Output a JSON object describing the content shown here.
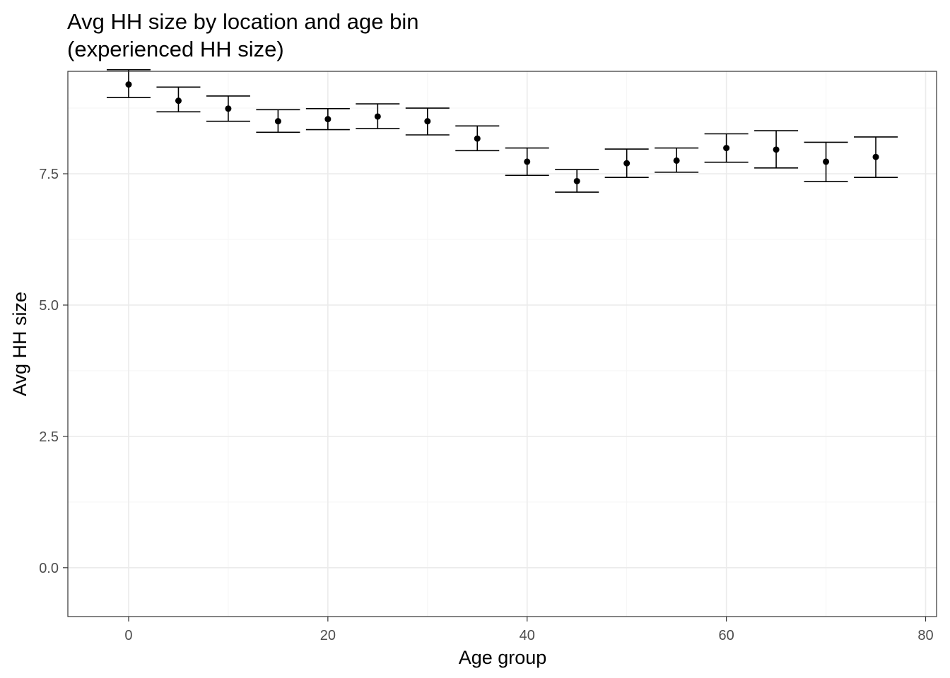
{
  "chart_data": {
    "type": "errorbar",
    "title_lines": [
      "Avg HH size by location and age bin",
      "(experienced HH size)"
    ],
    "xlabel": "Age group",
    "ylabel": "Avg HH size",
    "xlim": [
      -6.1,
      81.1
    ],
    "ylim": [
      -0.93,
      9.45
    ],
    "x_ticks": [
      0,
      20,
      40,
      60,
      80
    ],
    "x_tick_labels": [
      "0",
      "20",
      "40",
      "60",
      "80"
    ],
    "x_minor_ticks": [
      10,
      30,
      50,
      70
    ],
    "y_ticks": [
      0,
      2.5,
      5,
      7.5
    ],
    "y_tick_labels": [
      "0.0",
      "2.5",
      "5.0",
      "7.5"
    ],
    "y_minor_ticks": [
      1.25,
      3.75,
      6.25,
      8.75
    ],
    "grid": true,
    "theme": "bw",
    "errorbar_halfwidth": 2.2,
    "points": [
      {
        "x": 0,
        "y": 9.2,
        "ymin": 8.95,
        "ymax": 9.48
      },
      {
        "x": 5,
        "y": 8.89,
        "ymin": 8.68,
        "ymax": 9.15
      },
      {
        "x": 10,
        "y": 8.74,
        "ymin": 8.5,
        "ymax": 8.98
      },
      {
        "x": 15,
        "y": 8.5,
        "ymin": 8.29,
        "ymax": 8.72
      },
      {
        "x": 20,
        "y": 8.54,
        "ymin": 8.34,
        "ymax": 8.74
      },
      {
        "x": 25,
        "y": 8.59,
        "ymin": 8.36,
        "ymax": 8.83
      },
      {
        "x": 30,
        "y": 8.5,
        "ymin": 8.24,
        "ymax": 8.75
      },
      {
        "x": 35,
        "y": 8.17,
        "ymin": 7.94,
        "ymax": 8.41
      },
      {
        "x": 40,
        "y": 7.73,
        "ymin": 7.47,
        "ymax": 7.99
      },
      {
        "x": 45,
        "y": 7.36,
        "ymin": 7.15,
        "ymax": 7.58
      },
      {
        "x": 50,
        "y": 7.7,
        "ymin": 7.43,
        "ymax": 7.97
      },
      {
        "x": 55,
        "y": 7.75,
        "ymin": 7.53,
        "ymax": 7.99
      },
      {
        "x": 60,
        "y": 7.99,
        "ymin": 7.72,
        "ymax": 8.26
      },
      {
        "x": 65,
        "y": 7.96,
        "ymin": 7.61,
        "ymax": 8.32
      },
      {
        "x": 70,
        "y": 7.73,
        "ymin": 7.35,
        "ymax": 8.1
      },
      {
        "x": 75,
        "y": 7.82,
        "ymin": 7.43,
        "ymax": 8.2
      }
    ],
    "colors": {
      "panel_border": "#333333",
      "grid_major": "#ebebeb",
      "grid_minor": "#f5f5f5",
      "marks": "#000000",
      "tick_text": "#4d4d4d"
    }
  }
}
